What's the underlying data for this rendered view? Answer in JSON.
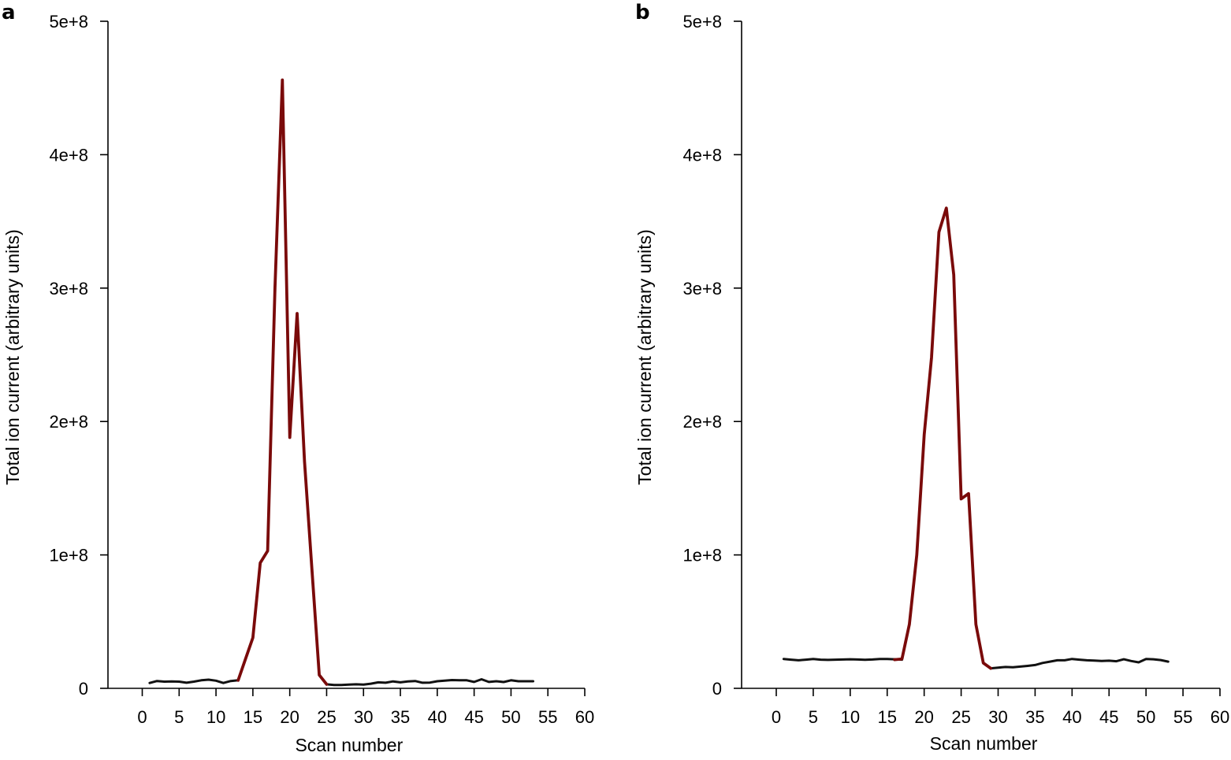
{
  "chart_data": [
    {
      "type": "line",
      "panel_label": "a",
      "xlabel": "Scan number",
      "ylabel": "Total ion current (arbitrary units)",
      "xlim": [
        -5,
        60
      ],
      "ylim": [
        0,
        500000000
      ],
      "xticks": [
        0,
        5,
        10,
        15,
        20,
        25,
        30,
        35,
        40,
        45,
        50,
        55,
        60
      ],
      "xtick_labels": [
        "0",
        "5",
        "10",
        "15",
        "20",
        "25",
        "30",
        "35",
        "40",
        "45",
        "50",
        "55",
        "60"
      ],
      "yticks": [
        0,
        100000000,
        200000000,
        300000000,
        400000000,
        500000000
      ],
      "ytick_labels": [
        "0",
        "1e+8",
        "2e+8",
        "3e+8",
        "4e+8",
        "5e+8"
      ],
      "grid": false,
      "colors": {
        "baseline": "#111111",
        "peak": "#7a0a0a"
      },
      "series": [
        {
          "color": "baseline",
          "x": [
            1,
            2,
            3,
            4,
            5,
            6,
            7,
            8,
            9,
            10,
            11,
            12,
            13
          ],
          "y": [
            4000000,
            5500000,
            5000000,
            5200000,
            5000000,
            4200000,
            5000000,
            6000000,
            6500000,
            5700000,
            4000000,
            5500000,
            6000000
          ]
        },
        {
          "color": "peak",
          "x": [
            13,
            14,
            15,
            16,
            17,
            18,
            19,
            20,
            21,
            22,
            23,
            24,
            25
          ],
          "y": [
            6000000,
            22000000,
            38000000,
            94000000,
            103000000,
            300000000,
            456000000,
            188000000,
            281000000,
            170000000,
            90000000,
            10000000,
            3000000
          ]
        },
        {
          "color": "baseline",
          "x": [
            25,
            26,
            27,
            28,
            29,
            30,
            31,
            32,
            33,
            34,
            35,
            36,
            37,
            38,
            39,
            40,
            41,
            42,
            43,
            44,
            45,
            46,
            47,
            48,
            49,
            50,
            51,
            52,
            53
          ],
          "y": [
            3000000,
            2500000,
            2500000,
            2800000,
            3000000,
            2800000,
            3500000,
            4500000,
            4200000,
            5200000,
            4500000,
            5200000,
            5500000,
            4200000,
            4300000,
            5300000,
            5700000,
            6200000,
            6000000,
            6000000,
            4800000,
            6800000,
            4800000,
            5300000,
            4700000,
            6000000,
            5300000,
            5300000,
            5300000
          ]
        }
      ]
    },
    {
      "type": "line",
      "panel_label": "b",
      "xlabel": "Scan number",
      "ylabel": "Total ion current (arbitrary units)",
      "xlim": [
        -5,
        60
      ],
      "ylim": [
        0,
        500000000
      ],
      "xticks": [
        0,
        5,
        10,
        15,
        20,
        25,
        30,
        35,
        40,
        45,
        50,
        55,
        60
      ],
      "xtick_labels": [
        "0",
        "5",
        "10",
        "15",
        "20",
        "25",
        "30",
        "35",
        "40",
        "45",
        "50",
        "55",
        "60"
      ],
      "yticks": [
        0,
        100000000,
        200000000,
        300000000,
        400000000,
        500000000
      ],
      "ytick_labels": [
        "0",
        "1e+8",
        "2e+8",
        "3e+8",
        "4e+8",
        "5e+8"
      ],
      "grid": false,
      "colors": {
        "baseline": "#111111",
        "peak": "#7a0a0a"
      },
      "series": [
        {
          "color": "baseline",
          "x": [
            1,
            2,
            3,
            4,
            5,
            6,
            7,
            8,
            9,
            10,
            11,
            12,
            13,
            14,
            15,
            16,
            17
          ],
          "y": [
            22000000,
            21500000,
            21000000,
            21500000,
            22000000,
            21500000,
            21300000,
            21500000,
            21600000,
            21800000,
            21600000,
            21400000,
            21600000,
            22000000,
            22000000,
            21800000,
            21500000
          ]
        },
        {
          "color": "peak",
          "x": [
            16,
            17,
            18,
            19,
            20,
            21,
            22,
            23,
            24,
            25,
            26,
            27,
            28,
            29
          ],
          "y": [
            21500000,
            22000000,
            48000000,
            100000000,
            190000000,
            248000000,
            342000000,
            360000000,
            310000000,
            142000000,
            146000000,
            48000000,
            19000000,
            15000000
          ]
        },
        {
          "color": "baseline",
          "x": [
            29,
            30,
            31,
            32,
            33,
            34,
            35,
            36,
            37,
            38,
            39,
            40,
            41,
            42,
            43,
            44,
            45,
            46,
            47,
            48,
            49,
            50,
            51,
            52,
            53
          ],
          "y": [
            15000000,
            15500000,
            16000000,
            15800000,
            16300000,
            16800000,
            17500000,
            19000000,
            20000000,
            21000000,
            21000000,
            22000000,
            21500000,
            21000000,
            20800000,
            20500000,
            20700000,
            20300000,
            21800000,
            20500000,
            19500000,
            22000000,
            21800000,
            21200000,
            20000000
          ]
        }
      ]
    }
  ]
}
